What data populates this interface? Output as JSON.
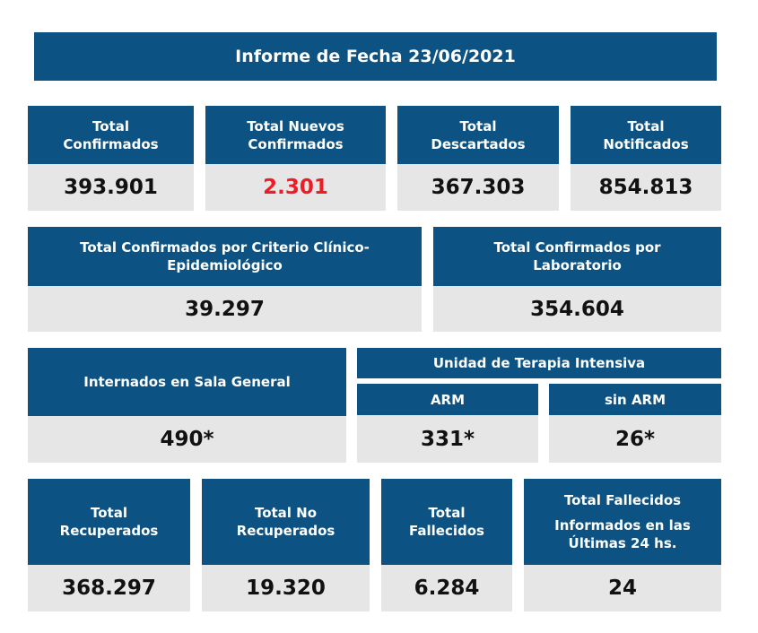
{
  "title": "Informe de Fecha 23/06/2021",
  "row1": [
    {
      "label_l1": "Total",
      "label_l2": "Confirmados",
      "value": "393.901"
    },
    {
      "label_l1": "Total Nuevos",
      "label_l2": "Confirmados",
      "value": "2.301"
    },
    {
      "label_l1": "Total",
      "label_l2": "Descartados",
      "value": "367.303"
    },
    {
      "label_l1": "Total",
      "label_l2": "Notificados",
      "value": "854.813"
    }
  ],
  "row2": [
    {
      "label_l1": "Total Confirmados por Criterio Clínico-",
      "label_l2": "Epidemiológico",
      "value": "39.297"
    },
    {
      "label_l1": "Total Confirmados por",
      "label_l2": "Laboratorio",
      "value": "354.604"
    }
  ],
  "row3": {
    "sala_general": {
      "label": "Internados en Sala General",
      "value": "490*"
    },
    "uti_label": "Unidad de Terapia Intensiva",
    "arm": {
      "label": "ARM",
      "value": "331*"
    },
    "sin_arm": {
      "label": "sin ARM",
      "value": "26*"
    }
  },
  "row4": [
    {
      "label_l1": "Total",
      "label_l2": "Recuperados",
      "value": "368.297"
    },
    {
      "label_l1": "Total No",
      "label_l2": "Recuperados",
      "value": "19.320"
    },
    {
      "label_l1": "Total",
      "label_l2": "Fallecidos",
      "value": "6.284"
    },
    {
      "label_l1": "Total Fallecidos",
      "label_l2": "Informados en las",
      "label_l3": "Últimas 24 hs.",
      "value": "24"
    }
  ],
  "colors": {
    "header": "#0c5283",
    "value_bg": "#e6e6e7",
    "highlight": "#ee1c24"
  }
}
